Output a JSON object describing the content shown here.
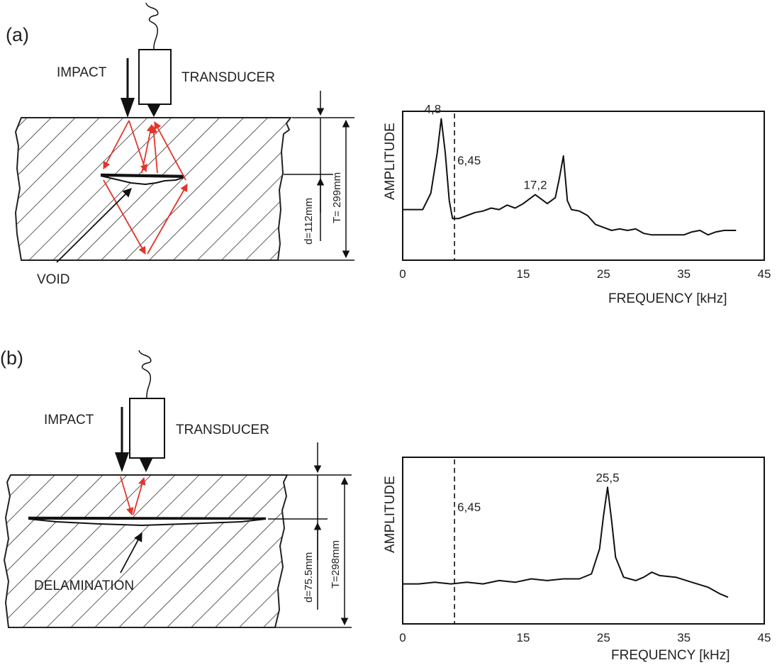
{
  "panels": [
    {
      "id": "a",
      "panel_label": "(a)",
      "impact_label": "IMPACT",
      "transducer_label": "TRANSDUCER",
      "defect_label": "VOID",
      "depth_label": "d=112mm",
      "thickness_label": "T= 299mm",
      "arrow_color": "#e2352b"
    },
    {
      "id": "b",
      "panel_label": "(b)",
      "impact_label": "IMPACT",
      "transducer_label": "TRANSDUCER",
      "defect_label": "DELAMINATION",
      "depth_label": "d=75.5mm",
      "thickness_label": "T=298mm",
      "arrow_color": "#e2352b"
    }
  ],
  "chart_data": [
    {
      "type": "line",
      "panel": "a",
      "ylabel": "AMPLITUDE",
      "xlabel": "FREQUENCY [kHz]",
      "xlim": [
        0,
        45
      ],
      "xticks": [
        "0",
        "15",
        "25",
        "35",
        "45"
      ],
      "reference_line": {
        "x": 6.45,
        "label": "6,45",
        "style": "dashed"
      },
      "peak_labels": [
        {
          "x": 4.8,
          "label": "4,8"
        },
        {
          "x": 17.2,
          "label": "17,2"
        }
      ],
      "series": [
        {
          "x": [
            0,
            2.5,
            3.5,
            4.3,
            4.8,
            5.3,
            5.8,
            6.2,
            6.6,
            7,
            8,
            9,
            10,
            11,
            12,
            13,
            14,
            15,
            16.5,
            18,
            19,
            19.5,
            20,
            20.5,
            21,
            22,
            23,
            24,
            25,
            26,
            27,
            28,
            29,
            30,
            31,
            32,
            33,
            34,
            35,
            36,
            37,
            38,
            39,
            40,
            41.5
          ],
          "y": [
            0.34,
            0.34,
            0.45,
            0.72,
            0.95,
            0.72,
            0.4,
            0.28,
            0.28,
            0.28,
            0.3,
            0.32,
            0.33,
            0.35,
            0.34,
            0.37,
            0.35,
            0.38,
            0.44,
            0.38,
            0.42,
            0.55,
            0.7,
            0.4,
            0.34,
            0.33,
            0.3,
            0.24,
            0.22,
            0.2,
            0.21,
            0.2,
            0.21,
            0.18,
            0.17,
            0.17,
            0.17,
            0.17,
            0.17,
            0.19,
            0.2,
            0.17,
            0.19,
            0.2,
            0.2
          ]
        }
      ]
    },
    {
      "type": "line",
      "panel": "b",
      "ylabel": "AMPLITUDE",
      "xlabel": "FREQUENCY [kHz]",
      "xlim": [
        0,
        45
      ],
      "xticks": [
        "0",
        "15",
        "25",
        "35",
        "45"
      ],
      "reference_line": {
        "x": 6.45,
        "label": "6,45",
        "style": "dashed"
      },
      "peak_labels": [
        {
          "x": 25.5,
          "label": "25,5"
        }
      ],
      "series": [
        {
          "x": [
            0,
            2,
            4,
            6,
            8,
            10,
            12,
            14,
            16,
            18,
            20,
            22,
            23.5,
            24.5,
            25,
            25.5,
            26,
            26.5,
            27.5,
            29,
            30,
            31,
            32,
            34,
            36,
            38,
            39.5,
            40.5
          ],
          "y": [
            0.24,
            0.24,
            0.25,
            0.24,
            0.25,
            0.24,
            0.26,
            0.25,
            0.27,
            0.26,
            0.27,
            0.27,
            0.3,
            0.45,
            0.65,
            0.82,
            0.62,
            0.4,
            0.28,
            0.26,
            0.28,
            0.31,
            0.29,
            0.28,
            0.25,
            0.22,
            0.18,
            0.16
          ]
        }
      ]
    }
  ]
}
